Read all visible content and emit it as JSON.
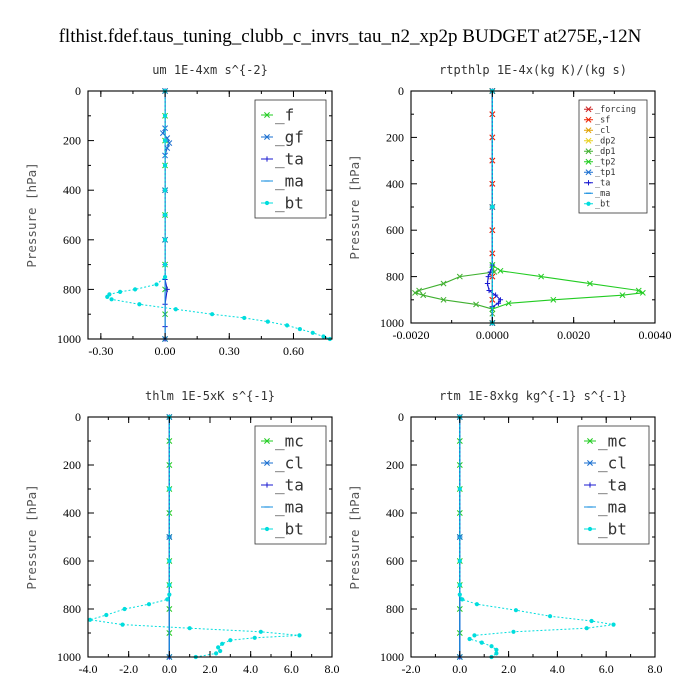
{
  "figure_title": "flthist.fdef.taus_tuning_clubb_c_invrs_tau_n2_xp2p  BUDGET at275E,-12N",
  "chart_data": [
    {
      "type": "line",
      "title": "um   1E-4xm  s^{-2}",
      "xlabel": "",
      "ylabel": "Pressure [hPa]",
      "xlim": [
        -0.36,
        0.78
      ],
      "ylim": [
        1000,
        0
      ],
      "xticks": [
        "-0.30",
        "0.00",
        "0.30",
        "0.60"
      ],
      "xtick_values": [
        -0.3,
        0.0,
        0.3,
        0.6
      ],
      "yticks": [
        "0",
        "200",
        "400",
        "600",
        "800",
        "1000"
      ],
      "ytick_values": [
        0,
        200,
        400,
        600,
        800,
        1000
      ],
      "legend": {
        "position": "top-right",
        "size": "large"
      },
      "series": [
        {
          "name": "_f",
          "color": "#22cc22",
          "marker": "x",
          "p": [
            0,
            100,
            200,
            300,
            400,
            500,
            600,
            700,
            800,
            900,
            1000
          ],
          "values": [
            0.0,
            0.0,
            0.0,
            0.0,
            0.0,
            0.0,
            0.0,
            0.0,
            0.0,
            0.0,
            0.0
          ]
        },
        {
          "name": "_gf",
          "color": "#1a6fd0",
          "marker": "x",
          "p": [
            0,
            150,
            170,
            190,
            210,
            230,
            260,
            400,
            600,
            1000
          ],
          "values": [
            0.0,
            0.0,
            -0.01,
            0.01,
            0.02,
            0.01,
            0.0,
            0.0,
            0.0,
            0.0
          ]
        },
        {
          "name": "_ta",
          "color": "#1a1ad0",
          "marker": "+",
          "p": [
            0,
            400,
            700,
            760,
            800,
            860,
            950,
            1000
          ],
          "values": [
            0.0,
            0.0,
            0.0,
            0.0,
            0.01,
            0.0,
            0.0,
            0.0
          ]
        },
        {
          "name": "_ma",
          "color": "#1a90e0",
          "marker": "-",
          "p": [
            0,
            500,
            1000
          ],
          "values": [
            0.0,
            0.0,
            0.0
          ]
        },
        {
          "name": "_bt",
          "color": "#00dddd",
          "marker": "dot",
          "p": [
            0,
            100,
            200,
            300,
            400,
            500,
            600,
            700,
            750,
            780,
            800,
            810,
            820,
            830,
            840,
            860,
            880,
            900,
            915,
            930,
            945,
            960,
            975,
            990,
            1000
          ],
          "values": [
            0.0,
            0.0,
            0.0,
            0.0,
            0.0,
            0.0,
            0.0,
            0.0,
            0.0,
            -0.04,
            -0.14,
            -0.21,
            -0.26,
            -0.27,
            -0.25,
            -0.12,
            0.05,
            0.22,
            0.37,
            0.48,
            0.57,
            0.63,
            0.69,
            0.74,
            0.77
          ]
        }
      ]
    },
    {
      "type": "line",
      "title": "rtpthlp   1E-4x(kg K)/(kg s)",
      "xlabel": "",
      "ylabel": "Pressure [hPa]",
      "xlim": [
        -0.002,
        0.004
      ],
      "ylim": [
        1000,
        0
      ],
      "xticks": [
        "-0.0020",
        "0.0000",
        "0.0020",
        "0.0040"
      ],
      "xtick_values": [
        -0.002,
        0.0,
        0.002,
        0.004
      ],
      "yticks": [
        "0",
        "200",
        "400",
        "600",
        "800",
        "1000"
      ],
      "ytick_values": [
        0,
        200,
        400,
        600,
        800,
        1000
      ],
      "legend": {
        "position": "top-right",
        "size": "small"
      },
      "series": [
        {
          "name": "_forcing",
          "color": "#cc2222",
          "marker": "x",
          "p": [
            0,
            100,
            200,
            300,
            400,
            500,
            600,
            700,
            800,
            900,
            1000
          ],
          "values": [
            0,
            0,
            0,
            0,
            0,
            0,
            0,
            0,
            0,
            0,
            0
          ]
        },
        {
          "name": "_sf",
          "color": "#ee2200",
          "marker": "x",
          "p": [
            0,
            100,
            200,
            300,
            400,
            500,
            600,
            700,
            800,
            900,
            1000
          ],
          "values": [
            0,
            0,
            0,
            0,
            0,
            0,
            0,
            0,
            0,
            0,
            0
          ]
        },
        {
          "name": "_cl",
          "color": "#e0a000",
          "marker": "x",
          "p": [
            0,
            500,
            1000
          ],
          "values": [
            0,
            0,
            0
          ]
        },
        {
          "name": "_dp2",
          "color": "#e8d020",
          "marker": "x",
          "p": [
            0,
            500,
            1000
          ],
          "values": [
            0,
            0,
            0
          ]
        },
        {
          "name": "_dp1",
          "color": "#40b030",
          "marker": "x",
          "p": [
            0,
            750,
            780,
            800,
            830,
            860,
            870,
            880,
            900,
            920,
            940,
            960,
            1000
          ],
          "values": [
            0.0,
            0.0,
            5e-05,
            -0.0008,
            -0.0012,
            -0.0018,
            -0.0019,
            -0.0017,
            -0.0012,
            -0.0004,
            0.0,
            0.0,
            0.0
          ]
        },
        {
          "name": "_tp2",
          "color": "#22cc22",
          "marker": "x",
          "p": [
            0,
            750,
            775,
            800,
            830,
            860,
            870,
            880,
            900,
            915,
            940,
            1000
          ],
          "values": [
            0.0,
            0.0,
            0.0002,
            0.0012,
            0.0024,
            0.0036,
            0.0037,
            0.0032,
            0.0015,
            0.0004,
            0.0,
            0.0
          ]
        },
        {
          "name": "_tp1",
          "color": "#1a6fd0",
          "marker": "x",
          "p": [
            0,
            500,
            1000
          ],
          "values": [
            0,
            0,
            0
          ]
        },
        {
          "name": "_ta",
          "color": "#1a1ad0",
          "marker": "+",
          "p": [
            0,
            750,
            780,
            800,
            830,
            860,
            880,
            900,
            915,
            930,
            1000
          ],
          "values": [
            0.0,
            0.0,
            -5e-05,
            -0.0001,
            -0.00012,
            -8e-05,
            8e-05,
            0.0002,
            0.00015,
            0.0,
            0.0
          ]
        },
        {
          "name": "_ma",
          "color": "#1a90e0",
          "marker": "-",
          "p": [
            0,
            500,
            1000
          ],
          "values": [
            0,
            0,
            0
          ]
        },
        {
          "name": "_bt",
          "color": "#00dddd",
          "marker": "dot",
          "p": [
            0,
            500,
            1000
          ],
          "values": [
            0,
            0,
            0
          ]
        }
      ]
    },
    {
      "type": "line",
      "title": "thlm   1E-5xK  s^{-1}",
      "xlabel": "",
      "ylabel": "Pressure [hPa]",
      "xlim": [
        -4.0,
        8.0
      ],
      "ylim": [
        1000,
        0
      ],
      "xticks": [
        "-4.0",
        "-2.0",
        "0.0",
        "2.0",
        "4.0",
        "6.0",
        "8.0"
      ],
      "xtick_values": [
        -4,
        -2,
        0,
        2,
        4,
        6,
        8
      ],
      "yticks": [
        "0",
        "200",
        "400",
        "600",
        "800",
        "1000"
      ],
      "ytick_values": [
        0,
        200,
        400,
        600,
        800,
        1000
      ],
      "legend": {
        "position": "top-right",
        "size": "large"
      },
      "series": [
        {
          "name": "_mc",
          "color": "#22cc22",
          "marker": "x",
          "p": [
            0,
            100,
            200,
            300,
            400,
            500,
            600,
            700,
            800,
            900,
            1000
          ],
          "values": [
            0,
            0,
            0,
            0,
            0,
            0,
            0,
            0,
            0,
            0,
            0
          ]
        },
        {
          "name": "_cl",
          "color": "#1a6fd0",
          "marker": "x",
          "p": [
            0,
            500,
            1000
          ],
          "values": [
            0,
            0,
            0
          ]
        },
        {
          "name": "_ta",
          "color": "#1a1ad0",
          "marker": "+",
          "p": [
            0,
            500,
            1000
          ],
          "values": [
            0,
            0,
            0
          ]
        },
        {
          "name": "_ma",
          "color": "#1a90e0",
          "marker": "-",
          "p": [
            0,
            500,
            1000
          ],
          "values": [
            0,
            0,
            0
          ]
        },
        {
          "name": "_bt",
          "color": "#00dddd",
          "marker": "dot",
          "p": [
            0,
            300,
            600,
            700,
            740,
            760,
            780,
            800,
            825,
            845,
            865,
            880,
            895,
            910,
            920,
            930,
            945,
            960,
            975,
            985,
            1000
          ],
          "values": [
            0.0,
            0.0,
            0.0,
            0.0,
            0.0,
            -0.1,
            -1.0,
            -2.2,
            -3.1,
            -3.9,
            -2.3,
            1.0,
            4.5,
            6.4,
            4.2,
            3.0,
            2.6,
            2.4,
            2.5,
            2.3,
            1.3
          ]
        }
      ]
    },
    {
      "type": "line",
      "title": "rtm   1E-8xkg  kg^{-1}  s^{-1}",
      "xlabel": "",
      "ylabel": "Pressure [hPa]",
      "xlim": [
        -2.0,
        8.0
      ],
      "ylim": [
        1000,
        0
      ],
      "xticks": [
        "-2.0",
        "0.0",
        "2.0",
        "4.0",
        "6.0",
        "8.0"
      ],
      "xtick_values": [
        -2,
        0,
        2,
        4,
        6,
        8
      ],
      "yticks": [
        "0",
        "200",
        "400",
        "600",
        "800",
        "1000"
      ],
      "ytick_values": [
        0,
        200,
        400,
        600,
        800,
        1000
      ],
      "legend": {
        "position": "top-right",
        "size": "large"
      },
      "series": [
        {
          "name": "_mc",
          "color": "#22cc22",
          "marker": "x",
          "p": [
            0,
            100,
            200,
            300,
            400,
            500,
            600,
            700,
            800,
            900,
            1000
          ],
          "values": [
            0,
            0,
            0,
            0,
            0,
            0,
            0,
            0,
            0,
            0,
            0
          ]
        },
        {
          "name": "_cl",
          "color": "#1a6fd0",
          "marker": "x",
          "p": [
            0,
            500,
            1000
          ],
          "values": [
            0,
            0,
            0
          ]
        },
        {
          "name": "_ta",
          "color": "#1a1ad0",
          "marker": "+",
          "p": [
            0,
            500,
            1000
          ],
          "values": [
            0,
            0,
            0
          ]
        },
        {
          "name": "_ma",
          "color": "#1a90e0",
          "marker": "-",
          "p": [
            0,
            500,
            1000
          ],
          "values": [
            0,
            0,
            0
          ]
        },
        {
          "name": "_bt",
          "color": "#00dddd",
          "marker": "dot",
          "p": [
            0,
            300,
            600,
            700,
            740,
            760,
            780,
            805,
            830,
            850,
            865,
            880,
            895,
            910,
            925,
            940,
            955,
            970,
            985,
            1000
          ],
          "values": [
            0.0,
            0.0,
            0.0,
            0.0,
            0.0,
            0.1,
            0.7,
            2.3,
            3.7,
            5.4,
            6.3,
            5.2,
            2.2,
            0.6,
            0.4,
            0.9,
            1.3,
            1.5,
            1.5,
            1.3
          ]
        }
      ]
    }
  ]
}
